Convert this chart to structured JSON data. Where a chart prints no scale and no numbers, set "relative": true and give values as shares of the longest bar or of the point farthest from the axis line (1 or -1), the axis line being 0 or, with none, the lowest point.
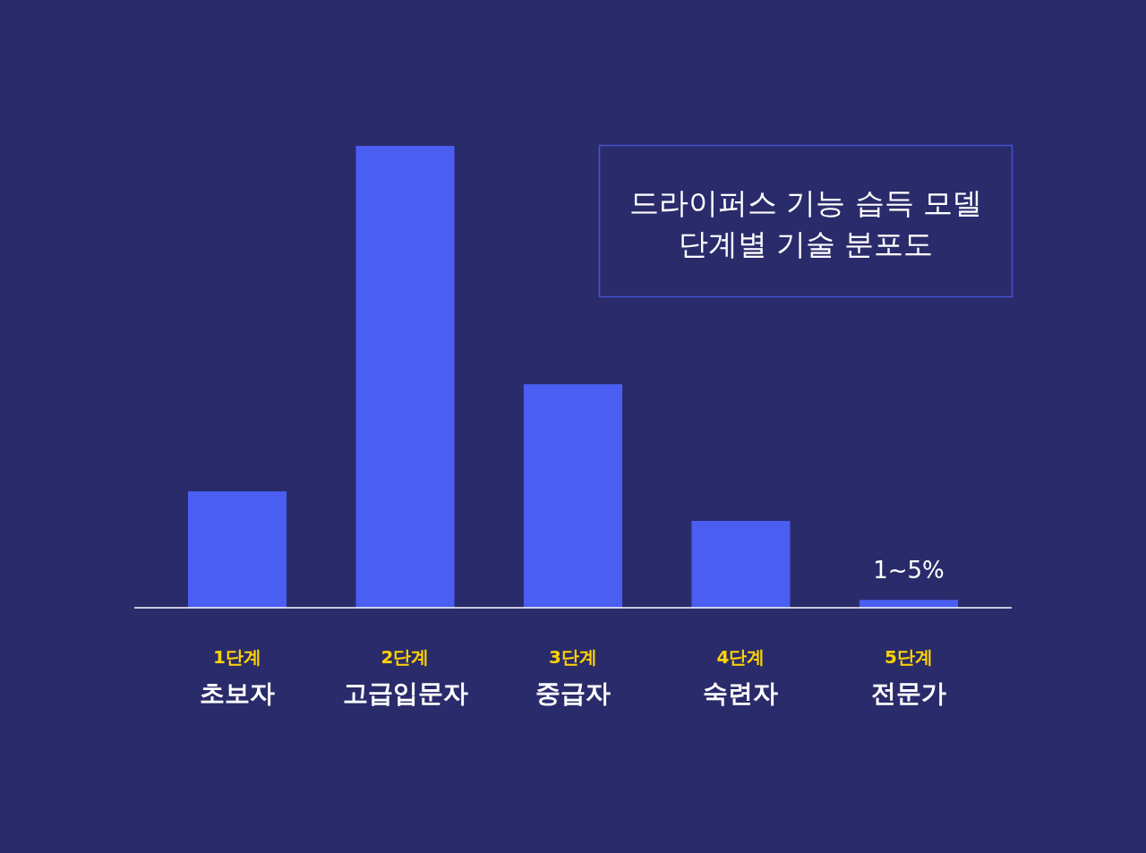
{
  "chart_data": {
    "type": "bar",
    "title": "드라이퍼스 기능 습득 모델\n단계별 기술 분포도",
    "categories": [
      "1단계\n초보자",
      "2단계\n고급입문자",
      "3단계\n중급자",
      "4단계\n숙련자",
      "5단계\n전문가"
    ],
    "values": [
      0.252,
      1,
      0.484,
      0.188,
      0.017
    ],
    "color": "#4b5ef2",
    "relative": true,
    "annotations": [
      {
        "text": "1~5%",
        "x": "5단계\n전문가",
        "y": 0.017
      }
    ]
  }
}
